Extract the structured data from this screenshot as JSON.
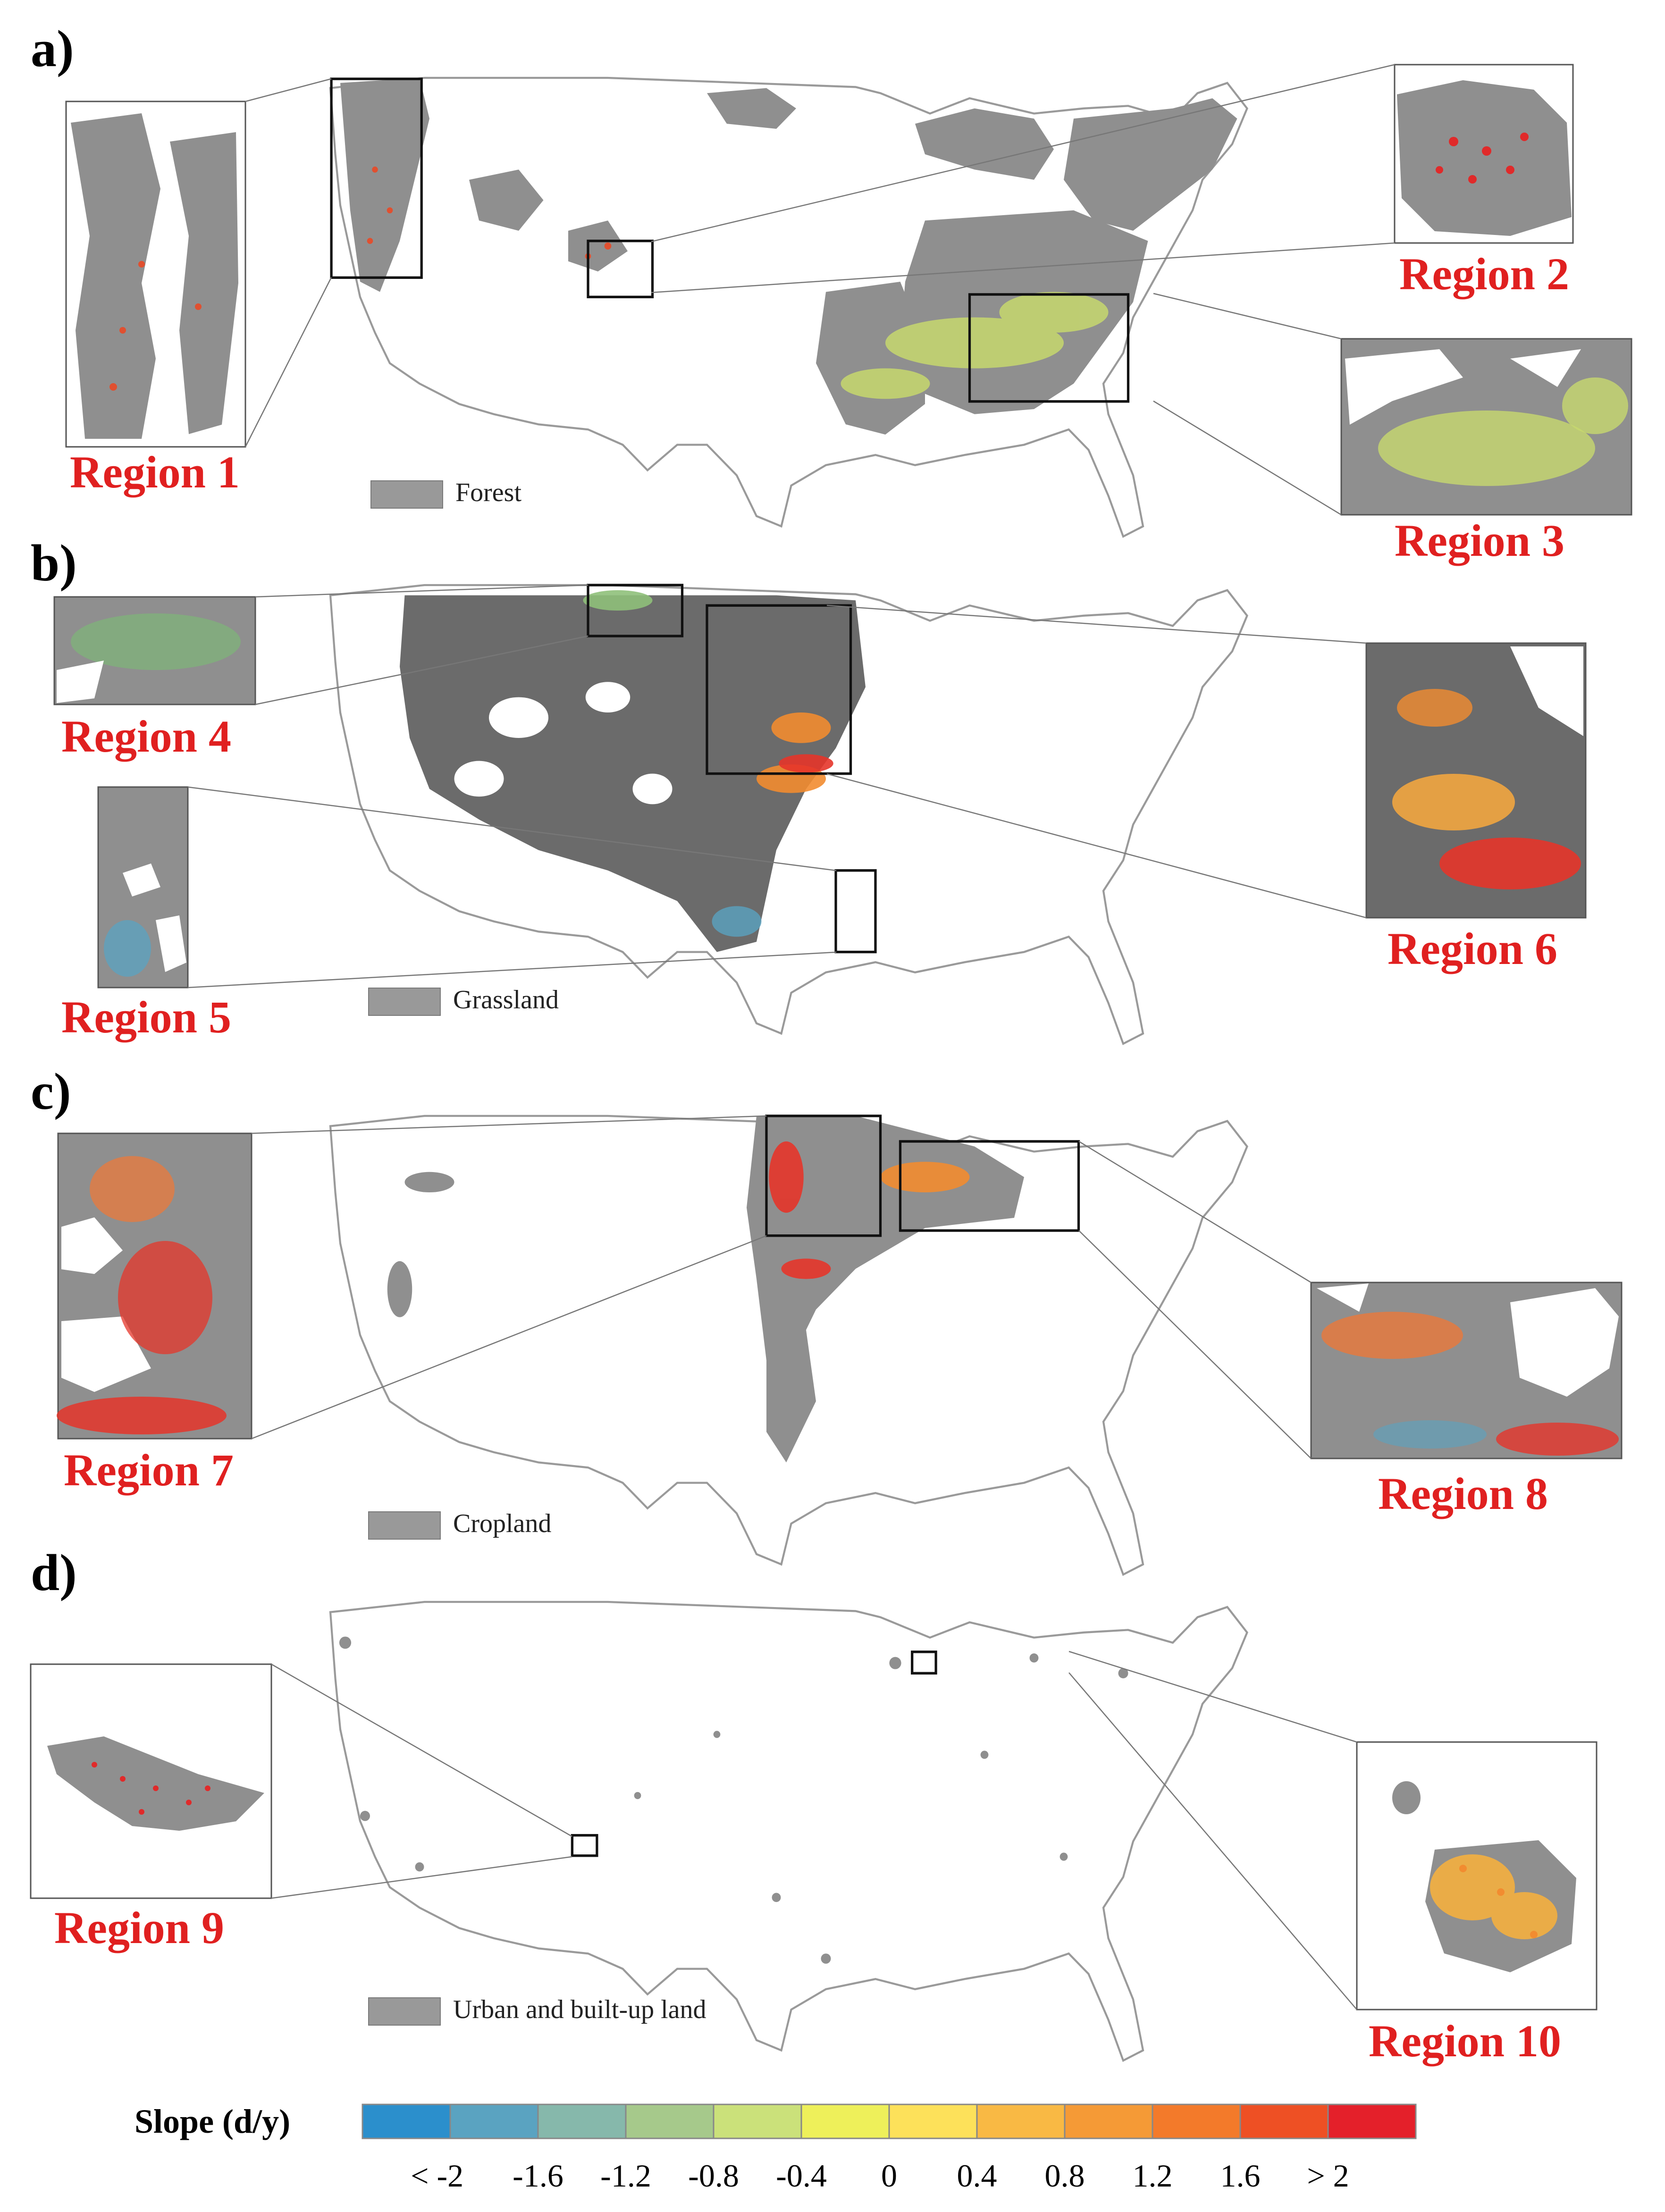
{
  "panels": [
    {
      "letter": "a)",
      "legend": "Forest",
      "regions": [
        "Region 1",
        "Region 2",
        "Region 3"
      ]
    },
    {
      "letter": "b)",
      "legend": "Grassland",
      "regions": [
        "Region 4",
        "Region 5",
        "Region 6"
      ]
    },
    {
      "letter": "c)",
      "legend": "Cropland",
      "regions": [
        "Region 7",
        "Region 8"
      ]
    },
    {
      "letter": "d)",
      "legend": "Urban and built-up land",
      "regions": [
        "Region 9",
        "Region 10"
      ]
    }
  ],
  "colorbar": {
    "title": "Slope (d/y)",
    "ticks": [
      "< -2",
      "-1.6",
      "-1.2",
      "-0.8",
      "-0.4",
      "0",
      "0.4",
      "0.8",
      "1.2",
      "1.6",
      "> 2"
    ],
    "colors": [
      "#2b8fcc",
      "#5aa3c1",
      "#86b8ab",
      "#a6c98b",
      "#cbe17a",
      "#eef05a",
      "#fde15a",
      "#f9b944",
      "#f59a36",
      "#f37a2a",
      "#ee5024",
      "#e4202a"
    ]
  },
  "colors": {
    "land_gray": "#8f8f8f",
    "outline": "#9a9a9a",
    "region_text": "#e02020"
  }
}
